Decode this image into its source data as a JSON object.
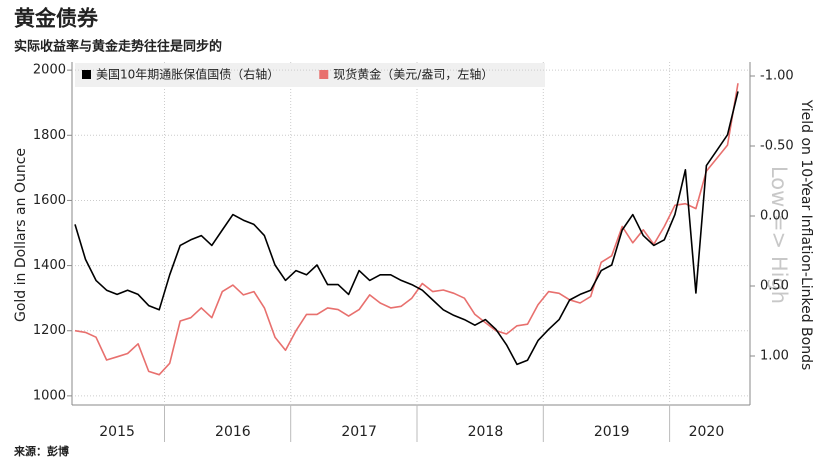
{
  "chart_data": {
    "type": "line",
    "title": "黄金债券",
    "subtitle": "实际收益率与黄金走势往往是同步的",
    "source": "来源：彭博",
    "y_label": "Gold in Dollars an Ounce",
    "y2_label": "Yield on 10-Year Inflation-Linked Bonds",
    "annotation": "Low => High",
    "grid": true,
    "legend": "top-left",
    "categories": [
      null,
      null,
      null,
      null,
      "2015",
      null,
      null,
      null,
      null,
      null,
      null,
      null,
      null,
      null,
      null,
      "2016",
      null,
      null,
      null,
      null,
      null,
      null,
      null,
      null,
      null,
      null,
      null,
      "2017",
      null,
      null,
      null,
      null,
      null,
      null,
      null,
      null,
      null,
      null,
      null,
      "2018",
      null,
      null,
      null,
      null,
      null,
      null,
      null,
      null,
      null,
      null,
      null,
      "2019",
      null,
      null,
      null,
      null,
      null,
      null,
      null,
      null,
      "2020",
      null,
      null,
      null
    ],
    "ylim": [
      972,
      2025
    ],
    "yticks": [
      1000,
      1200,
      1400,
      1600,
      1800,
      2000
    ],
    "y2lim": [
      1.35,
      -1.1
    ],
    "y2ticks": [
      {
        "value": -1.0,
        "label": "-1.00"
      },
      {
        "value": -0.5,
        "label": "-0.50"
      },
      {
        "value": 0.0,
        "label": "0.00"
      },
      {
        "value": 0.5,
        "label": "0.50"
      },
      {
        "value": 1.0,
        "label": "1.00"
      }
    ],
    "series": [
      {
        "name": "美国10年期通胀保值国债（右轴）",
        "color": "#000000",
        "axis": "y2",
        "values": [
          0.06,
          0.31,
          0.46,
          0.53,
          0.56,
          0.53,
          0.56,
          0.64,
          0.67,
          0.42,
          0.21,
          0.17,
          0.14,
          0.21,
          0.1,
          -0.01,
          0.03,
          0.06,
          0.14,
          0.35,
          0.46,
          0.39,
          0.42,
          0.35,
          0.49,
          0.49,
          0.56,
          0.39,
          0.46,
          0.42,
          0.42,
          0.46,
          0.49,
          0.53,
          0.6,
          0.67,
          0.71,
          0.74,
          0.78,
          0.74,
          0.81,
          0.92,
          1.06,
          1.03,
          0.89,
          0.81,
          0.74,
          0.6,
          0.56,
          0.53,
          0.39,
          0.35,
          0.1,
          -0.01,
          0.14,
          0.21,
          0.17,
          -0.01,
          -0.33,
          0.55,
          -0.36,
          -0.47,
          -0.58,
          -0.89
        ]
      },
      {
        "name": "现货黄金（美元/盎司，左轴）",
        "color": "#e8706e",
        "values": [
          1200,
          1195,
          1180,
          1110,
          1120,
          1130,
          1160,
          1075,
          1065,
          1100,
          1230,
          1240,
          1270,
          1240,
          1320,
          1340,
          1310,
          1320,
          1270,
          1180,
          1140,
          1200,
          1250,
          1250,
          1270,
          1265,
          1245,
          1265,
          1310,
          1285,
          1270,
          1275,
          1300,
          1345,
          1320,
          1325,
          1315,
          1300,
          1250,
          1225,
          1200,
          1190,
          1215,
          1220,
          1280,
          1320,
          1315,
          1295,
          1285,
          1305,
          1410,
          1430,
          1520,
          1470,
          1510,
          1465,
          1520,
          1585,
          1590,
          1575,
          1690,
          1730,
          1770,
          1960
        ]
      }
    ]
  }
}
